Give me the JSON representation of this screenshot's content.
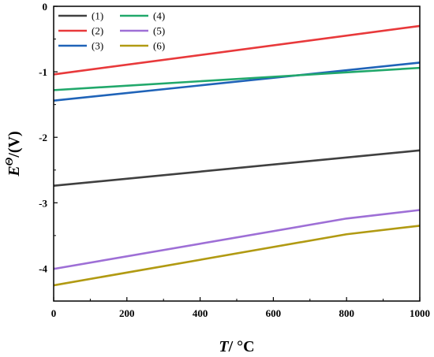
{
  "chart_data": {
    "type": "line",
    "xlabel": {
      "var": "T",
      "unit": "/ °C"
    },
    "ylabel": {
      "var": "E",
      "sup": "Θ",
      "unit": "/(V)"
    },
    "xlim": [
      0,
      1000
    ],
    "ylim": [
      -4.5,
      0
    ],
    "xticks": [
      0,
      200,
      400,
      600,
      800,
      1000
    ],
    "yticks": [
      0,
      -1,
      -2,
      -3,
      -4
    ],
    "legend_position": "top-left",
    "series": [
      {
        "name": "(1)",
        "color": "#404040",
        "x": [
          0,
          1000
        ],
        "y": [
          -2.74,
          -2.2
        ]
      },
      {
        "name": "(2)",
        "color": "#e8393b",
        "x": [
          0,
          1000
        ],
        "y": [
          -1.04,
          -0.3
        ]
      },
      {
        "name": "(3)",
        "color": "#1f63b8",
        "x": [
          0,
          1000
        ],
        "y": [
          -1.44,
          -0.86
        ]
      },
      {
        "name": "(4)",
        "color": "#21a86b",
        "x": [
          0,
          1000
        ],
        "y": [
          -1.28,
          -0.94
        ]
      },
      {
        "name": "(5)",
        "color": "#9e6fd6",
        "x": [
          0,
          800,
          1000
        ],
        "y": [
          -4.01,
          -3.24,
          -3.11
        ]
      },
      {
        "name": "(6)",
        "color": "#b19a12",
        "x": [
          0,
          800,
          1000
        ],
        "y": [
          -4.26,
          -3.48,
          -3.35
        ]
      }
    ]
  }
}
